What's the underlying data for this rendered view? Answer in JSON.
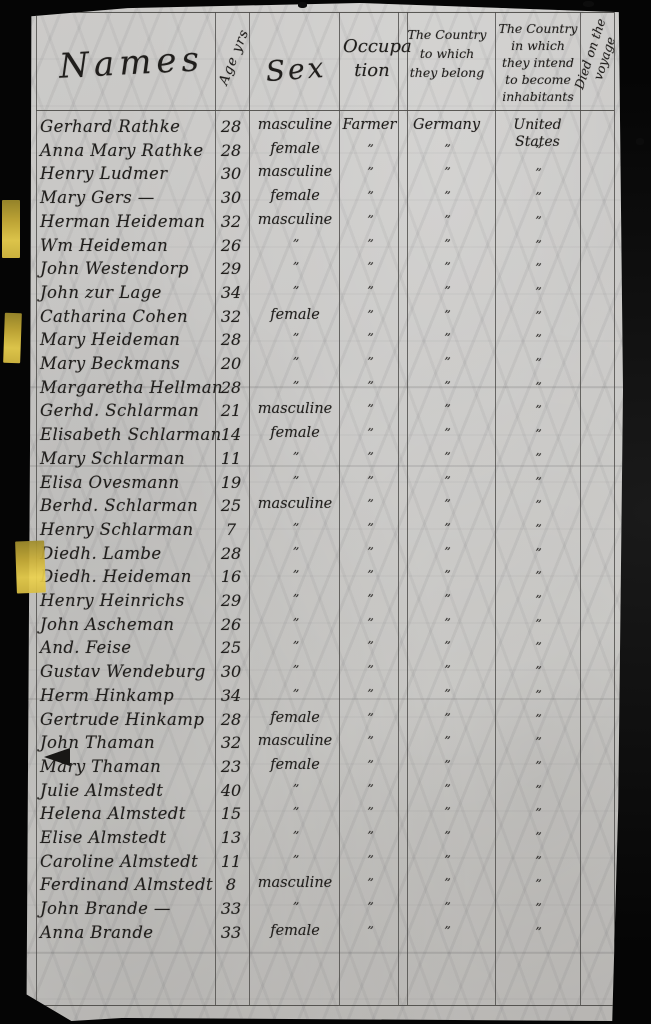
{
  "page": {
    "kind": "handwritten passenger manifest",
    "ink_color": "#201e1c",
    "tape_color": "#d8bd42",
    "header": {
      "names": "Names",
      "age": "Age yrs",
      "sex": "Sex",
      "occupation": "Occupa\ntion",
      "country_belong": "The Country\nto which\nthey belong",
      "country_intend": "The Country\nin which\nthey intend\nto become\ninhabitants",
      "died_on_voyage": "Died on the\nvoyage"
    },
    "ditto_mark": "”",
    "rows": [
      {
        "name": "Gerhard Rathke",
        "age": "28",
        "sex": "masculine",
        "occupation": "Farmer",
        "country": "Germany",
        "destination": "United States",
        "died": ""
      },
      {
        "name": "Anna Mary Rathke",
        "age": "28",
        "sex": "female",
        "occupation": "”",
        "country": "”",
        "destination": "”",
        "died": ""
      },
      {
        "name": "Henry Ludmer",
        "age": "30",
        "sex": "masculine",
        "occupation": "”",
        "country": "”",
        "destination": "”",
        "died": ""
      },
      {
        "name": "Mary Gers —",
        "age": "30",
        "sex": "female",
        "occupation": "”",
        "country": "”",
        "destination": "”",
        "died": ""
      },
      {
        "name": "Herman Heideman",
        "age": "32",
        "sex": "masculine",
        "occupation": "”",
        "country": "”",
        "destination": "”",
        "died": ""
      },
      {
        "name": "Wm Heideman",
        "age": "26",
        "sex": "”",
        "occupation": "”",
        "country": "”",
        "destination": "”",
        "died": ""
      },
      {
        "name": "John Westendorp",
        "age": "29",
        "sex": "”",
        "occupation": "”",
        "country": "”",
        "destination": "”",
        "died": ""
      },
      {
        "name": "John zur Lage",
        "age": "34",
        "sex": "”",
        "occupation": "”",
        "country": "”",
        "destination": "”",
        "died": ""
      },
      {
        "name": "Catharina Cohen",
        "age": "32",
        "sex": "female",
        "occupation": "”",
        "country": "”",
        "destination": "”",
        "died": ""
      },
      {
        "name": "Mary Heideman",
        "age": "28",
        "sex": "”",
        "occupation": "”",
        "country": "”",
        "destination": "”",
        "died": ""
      },
      {
        "name": "Mary Beckmans",
        "age": "20",
        "sex": "”",
        "occupation": "”",
        "country": "”",
        "destination": "”",
        "died": ""
      },
      {
        "name": "Margaretha Hellman",
        "age": "28",
        "sex": "”",
        "occupation": "”",
        "country": "”",
        "destination": "”",
        "died": ""
      },
      {
        "name": "Gerhd. Schlarman",
        "age": "21",
        "sex": "masculine",
        "occupation": "”",
        "country": "”",
        "destination": "”",
        "died": ""
      },
      {
        "name": "Elisabeth Schlarman",
        "age": "14",
        "sex": "female",
        "occupation": "”",
        "country": "”",
        "destination": "”",
        "died": ""
      },
      {
        "name": "Mary Schlarman",
        "age": "11",
        "sex": "”",
        "occupation": "”",
        "country": "”",
        "destination": "”",
        "died": ""
      },
      {
        "name": "Elisa Ovesmann",
        "age": "19",
        "sex": "”",
        "occupation": "”",
        "country": "”",
        "destination": "”",
        "died": ""
      },
      {
        "name": "Berhd. Schlarman",
        "age": "25",
        "sex": "masculine",
        "occupation": "”",
        "country": "”",
        "destination": "”",
        "died": ""
      },
      {
        "name": "Henry Schlarman",
        "age": "7",
        "sex": "”",
        "occupation": "”",
        "country": "”",
        "destination": "”",
        "died": ""
      },
      {
        "name": "Diedh. Lambe",
        "age": "28",
        "sex": "”",
        "occupation": "”",
        "country": "”",
        "destination": "”",
        "died": ""
      },
      {
        "name": "Diedh. Heideman",
        "age": "16",
        "sex": "”",
        "occupation": "”",
        "country": "”",
        "destination": "”",
        "died": ""
      },
      {
        "name": "Henry Heinrichs",
        "age": "29",
        "sex": "”",
        "occupation": "”",
        "country": "”",
        "destination": "”",
        "died": ""
      },
      {
        "name": "John Ascheman",
        "age": "26",
        "sex": "”",
        "occupation": "”",
        "country": "”",
        "destination": "”",
        "died": ""
      },
      {
        "name": "And. Feise",
        "age": "25",
        "sex": "”",
        "occupation": "”",
        "country": "”",
        "destination": "”",
        "died": ""
      },
      {
        "name": "Gustav Wendeburg",
        "age": "30",
        "sex": "”",
        "occupation": "”",
        "country": "”",
        "destination": "”",
        "died": ""
      },
      {
        "name": "Herm Hinkamp",
        "age": "34",
        "sex": "”",
        "occupation": "”",
        "country": "”",
        "destination": "”",
        "died": ""
      },
      {
        "name": "Gertrude Hinkamp",
        "age": "28",
        "sex": "female",
        "occupation": "”",
        "country": "”",
        "destination": "”",
        "died": ""
      },
      {
        "name": "John Thaman",
        "age": "32",
        "sex": "masculine",
        "occupation": "”",
        "country": "”",
        "destination": "”",
        "died": ""
      },
      {
        "name": "Mary Thaman",
        "age": "23",
        "sex": "female",
        "occupation": "”",
        "country": "”",
        "destination": "”",
        "died": ""
      },
      {
        "name": "Julie Almstedt",
        "age": "40",
        "sex": "”",
        "occupation": "”",
        "country": "”",
        "destination": "”",
        "died": ""
      },
      {
        "name": "Helena Almstedt",
        "age": "15",
        "sex": "”",
        "occupation": "”",
        "country": "”",
        "destination": "”",
        "died": ""
      },
      {
        "name": "Elise Almstedt",
        "age": "13",
        "sex": "”",
        "occupation": "”",
        "country": "”",
        "destination": "”",
        "died": ""
      },
      {
        "name": "Caroline Almstedt",
        "age": "11",
        "sex": "”",
        "occupation": "”",
        "country": "”",
        "destination": "”",
        "died": ""
      },
      {
        "name": "Ferdinand Almstedt",
        "age": "8",
        "sex": "masculine",
        "occupation": "”",
        "country": "”",
        "destination": "”",
        "died": ""
      },
      {
        "name": "John Brande —",
        "age": "33",
        "sex": "”",
        "occupation": "”",
        "country": "”",
        "destination": "”",
        "died": ""
      },
      {
        "name": "Anna Brande",
        "age": "33",
        "sex": "female",
        "occupation": "”",
        "country": "”",
        "destination": "”",
        "died": ""
      }
    ]
  }
}
